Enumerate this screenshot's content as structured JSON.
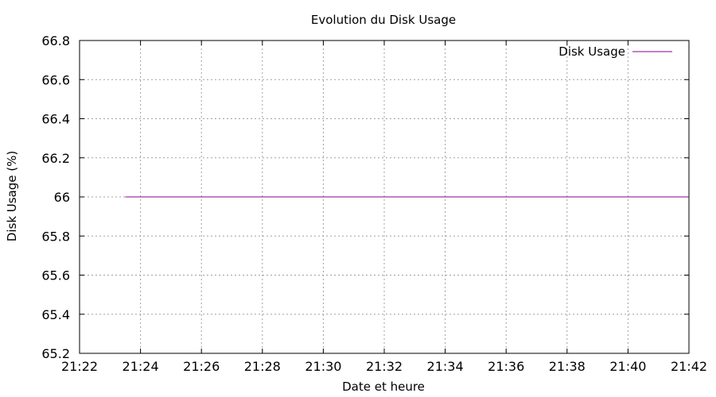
{
  "chart_data": {
    "type": "line",
    "title": "Evolution du Disk Usage",
    "xlabel": "Date et heure",
    "ylabel": "Disk Usage (%)",
    "x_ticks": [
      "21:22",
      "21:24",
      "21:26",
      "21:28",
      "21:30",
      "21:32",
      "21:34",
      "21:36",
      "21:38",
      "21:40",
      "21:42"
    ],
    "y_ticks": [
      65.2,
      65.4,
      65.6,
      65.8,
      66,
      66.2,
      66.4,
      66.6,
      66.8
    ],
    "xlim": [
      "21:22",
      "21:42"
    ],
    "ylim": [
      65.2,
      66.8
    ],
    "grid": true,
    "legend_position": "top-right",
    "series": [
      {
        "name": "Disk Usage",
        "color": "#8b008b",
        "x": [
          "21:23:30",
          "21:42:00"
        ],
        "y": [
          66,
          66
        ]
      }
    ]
  }
}
